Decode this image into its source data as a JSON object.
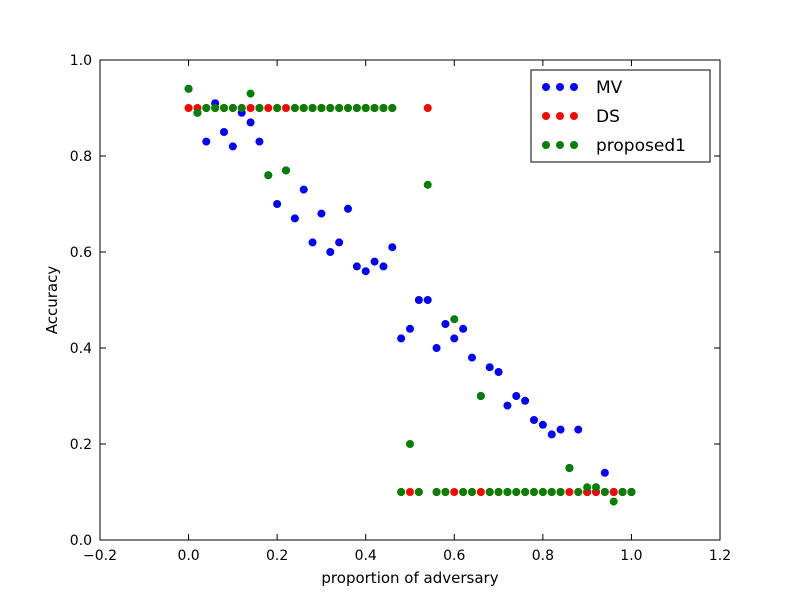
{
  "chart_data": {
    "type": "scatter",
    "xlabel": "proportion of adversary",
    "ylabel": "Accuracy",
    "xlim": [
      -0.2,
      1.2
    ],
    "ylim": [
      0.0,
      1.0
    ],
    "xticks": [
      "−0.2",
      "0.0",
      "0.2",
      "0.4",
      "0.6",
      "0.8",
      "1.0",
      "1.2"
    ],
    "yticks": [
      "0.0",
      "0.2",
      "0.4",
      "0.6",
      "0.8",
      "1.0"
    ],
    "legend_position": "top-right",
    "grid": false,
    "series": [
      {
        "name": "MV",
        "color": "#0000ff",
        "points": [
          [
            0.0,
            0.94
          ],
          [
            0.02,
            0.89
          ],
          [
            0.04,
            0.83
          ],
          [
            0.06,
            0.91
          ],
          [
            0.08,
            0.85
          ],
          [
            0.1,
            0.82
          ],
          [
            0.12,
            0.89
          ],
          [
            0.14,
            0.87
          ],
          [
            0.16,
            0.83
          ],
          [
            0.18,
            0.76
          ],
          [
            0.2,
            0.7
          ],
          [
            0.22,
            0.77
          ],
          [
            0.24,
            0.67
          ],
          [
            0.26,
            0.73
          ],
          [
            0.28,
            0.62
          ],
          [
            0.3,
            0.68
          ],
          [
            0.32,
            0.6
          ],
          [
            0.34,
            0.62
          ],
          [
            0.36,
            0.69
          ],
          [
            0.38,
            0.57
          ],
          [
            0.4,
            0.56
          ],
          [
            0.42,
            0.58
          ],
          [
            0.44,
            0.57
          ],
          [
            0.46,
            0.61
          ],
          [
            0.48,
            0.42
          ],
          [
            0.5,
            0.44
          ],
          [
            0.52,
            0.5
          ],
          [
            0.54,
            0.5
          ],
          [
            0.56,
            0.4
          ],
          [
            0.58,
            0.45
          ],
          [
            0.6,
            0.42
          ],
          [
            0.62,
            0.44
          ],
          [
            0.64,
            0.38
          ],
          [
            0.66,
            0.3
          ],
          [
            0.68,
            0.36
          ],
          [
            0.7,
            0.35
          ],
          [
            0.72,
            0.28
          ],
          [
            0.74,
            0.3
          ],
          [
            0.76,
            0.29
          ],
          [
            0.78,
            0.25
          ],
          [
            0.8,
            0.24
          ],
          [
            0.82,
            0.22
          ],
          [
            0.84,
            0.23
          ],
          [
            0.86,
            0.15
          ],
          [
            0.88,
            0.23
          ],
          [
            0.9,
            0.1
          ],
          [
            0.92,
            0.1
          ],
          [
            0.94,
            0.14
          ],
          [
            0.96,
            0.1
          ],
          [
            0.98,
            0.1
          ],
          [
            1.0,
            0.1
          ]
        ]
      },
      {
        "name": "DS",
        "color": "#ff0000",
        "points": [
          [
            0.0,
            0.9
          ],
          [
            0.02,
            0.9
          ],
          [
            0.04,
            0.9
          ],
          [
            0.06,
            0.9
          ],
          [
            0.08,
            0.9
          ],
          [
            0.1,
            0.9
          ],
          [
            0.12,
            0.9
          ],
          [
            0.14,
            0.9
          ],
          [
            0.16,
            0.9
          ],
          [
            0.18,
            0.9
          ],
          [
            0.2,
            0.9
          ],
          [
            0.22,
            0.9
          ],
          [
            0.24,
            0.9
          ],
          [
            0.26,
            0.9
          ],
          [
            0.28,
            0.9
          ],
          [
            0.3,
            0.9
          ],
          [
            0.32,
            0.9
          ],
          [
            0.34,
            0.9
          ],
          [
            0.36,
            0.9
          ],
          [
            0.38,
            0.9
          ],
          [
            0.4,
            0.9
          ],
          [
            0.42,
            0.9
          ],
          [
            0.44,
            0.9
          ],
          [
            0.46,
            0.9
          ],
          [
            0.48,
            0.1
          ],
          [
            0.5,
            0.1
          ],
          [
            0.52,
            0.1
          ],
          [
            0.54,
            0.9
          ],
          [
            0.56,
            0.1
          ],
          [
            0.58,
            0.1
          ],
          [
            0.6,
            0.1
          ],
          [
            0.62,
            0.1
          ],
          [
            0.64,
            0.1
          ],
          [
            0.66,
            0.1
          ],
          [
            0.68,
            0.1
          ],
          [
            0.7,
            0.1
          ],
          [
            0.72,
            0.1
          ],
          [
            0.74,
            0.1
          ],
          [
            0.76,
            0.1
          ],
          [
            0.78,
            0.1
          ],
          [
            0.8,
            0.1
          ],
          [
            0.82,
            0.1
          ],
          [
            0.84,
            0.1
          ],
          [
            0.86,
            0.1
          ],
          [
            0.88,
            0.1
          ],
          [
            0.9,
            0.1
          ],
          [
            0.92,
            0.1
          ],
          [
            0.94,
            0.1
          ],
          [
            0.96,
            0.1
          ],
          [
            0.98,
            0.1
          ],
          [
            1.0,
            0.1
          ]
        ]
      },
      {
        "name": "proposed1",
        "color": "#008000",
        "points": [
          [
            0.0,
            0.94
          ],
          [
            0.02,
            0.89
          ],
          [
            0.04,
            0.9
          ],
          [
            0.06,
            0.9
          ],
          [
            0.08,
            0.9
          ],
          [
            0.1,
            0.9
          ],
          [
            0.12,
            0.9
          ],
          [
            0.14,
            0.93
          ],
          [
            0.16,
            0.9
          ],
          [
            0.18,
            0.76
          ],
          [
            0.2,
            0.9
          ],
          [
            0.22,
            0.77
          ],
          [
            0.24,
            0.9
          ],
          [
            0.26,
            0.9
          ],
          [
            0.28,
            0.9
          ],
          [
            0.3,
            0.9
          ],
          [
            0.32,
            0.9
          ],
          [
            0.34,
            0.9
          ],
          [
            0.36,
            0.9
          ],
          [
            0.38,
            0.9
          ],
          [
            0.4,
            0.9
          ],
          [
            0.42,
            0.9
          ],
          [
            0.44,
            0.9
          ],
          [
            0.46,
            0.9
          ],
          [
            0.48,
            0.1
          ],
          [
            0.5,
            0.2
          ],
          [
            0.52,
            0.1
          ],
          [
            0.54,
            0.74
          ],
          [
            0.56,
            0.1
          ],
          [
            0.58,
            0.1
          ],
          [
            0.6,
            0.46
          ],
          [
            0.62,
            0.1
          ],
          [
            0.64,
            0.1
          ],
          [
            0.66,
            0.3
          ],
          [
            0.68,
            0.1
          ],
          [
            0.7,
            0.1
          ],
          [
            0.72,
            0.1
          ],
          [
            0.74,
            0.1
          ],
          [
            0.76,
            0.1
          ],
          [
            0.78,
            0.1
          ],
          [
            0.8,
            0.1
          ],
          [
            0.82,
            0.1
          ],
          [
            0.84,
            0.1
          ],
          [
            0.86,
            0.15
          ],
          [
            0.88,
            0.1
          ],
          [
            0.9,
            0.11
          ],
          [
            0.92,
            0.11
          ],
          [
            0.94,
            0.1
          ],
          [
            0.96,
            0.08
          ],
          [
            0.98,
            0.1
          ],
          [
            1.0,
            0.1
          ]
        ]
      }
    ]
  }
}
